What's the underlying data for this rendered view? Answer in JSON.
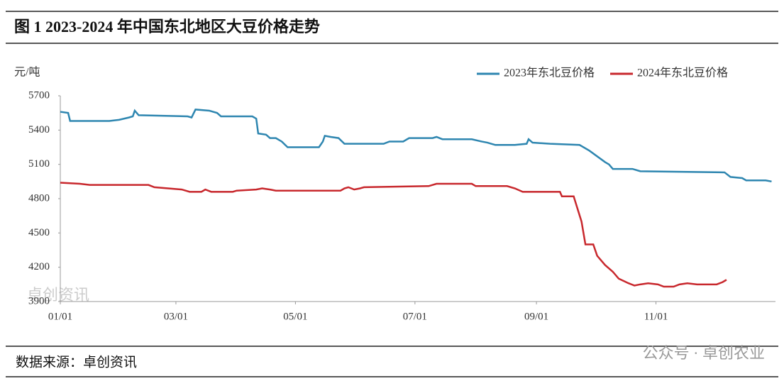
{
  "chart_data": {
    "type": "line",
    "title": "图 1 2023-2024 年中国东北地区大豆价格走势",
    "ylabel": "元/吨",
    "source": "数据来源：卓创资讯",
    "watermarks": [
      "卓创资讯",
      "公众号 · 卓创农业"
    ],
    "xlim": [
      0,
      365
    ],
    "xticks": [
      {
        "value": 0,
        "label": "01/01"
      },
      {
        "value": 59,
        "label": "03/01"
      },
      {
        "value": 120,
        "label": "05/01"
      },
      {
        "value": 181,
        "label": "07/01"
      },
      {
        "value": 243,
        "label": "09/01"
      },
      {
        "value": 304,
        "label": "11/01"
      }
    ],
    "ylim": [
      3900,
      5700
    ],
    "yticks": [
      3900,
      4200,
      4500,
      4800,
      5100,
      5400,
      5700
    ],
    "legend": "top-right",
    "series": [
      {
        "name": "2023年东北豆价格",
        "color": "#2e86b0",
        "x": [
          0,
          4,
          5,
          25,
          30,
          35,
          37,
          38,
          40,
          65,
          67,
          69,
          76,
          80,
          82,
          98,
          100,
          101,
          105,
          107,
          110,
          113,
          116,
          132,
          134,
          135,
          138,
          142,
          145,
          165,
          168,
          175,
          178,
          190,
          192,
          195,
          210,
          215,
          218,
          222,
          232,
          238,
          239,
          241,
          250,
          265,
          270,
          278,
          280,
          282,
          292,
          296,
          339,
          342,
          348,
          350,
          360,
          363
        ],
        "values": [
          5560,
          5550,
          5480,
          5480,
          5490,
          5510,
          5520,
          5570,
          5530,
          5520,
          5510,
          5580,
          5570,
          5550,
          5520,
          5520,
          5500,
          5370,
          5360,
          5330,
          5330,
          5300,
          5250,
          5250,
          5300,
          5350,
          5340,
          5330,
          5280,
          5280,
          5300,
          5300,
          5330,
          5330,
          5340,
          5320,
          5320,
          5300,
          5290,
          5270,
          5270,
          5280,
          5320,
          5290,
          5280,
          5270,
          5220,
          5120,
          5100,
          5060,
          5060,
          5040,
          5030,
          4990,
          4980,
          4960,
          4960,
          4950
        ]
      },
      {
        "name": "2024年东北豆价格",
        "color": "#c8282d",
        "x": [
          0,
          10,
          15,
          45,
          48,
          55,
          62,
          66,
          72,
          74,
          77,
          88,
          90,
          100,
          103,
          107,
          110,
          143,
          145,
          147,
          150,
          153,
          155,
          188,
          192,
          210,
          212,
          228,
          232,
          236,
          255,
          256,
          262,
          266,
          268,
          272,
          274,
          278,
          282,
          285,
          290,
          293,
          296,
          300,
          305,
          308,
          313,
          316,
          320,
          325,
          335,
          338,
          340
        ],
        "values": [
          4940,
          4930,
          4920,
          4920,
          4900,
          4890,
          4880,
          4860,
          4860,
          4880,
          4860,
          4860,
          4870,
          4880,
          4890,
          4880,
          4870,
          4870,
          4890,
          4900,
          4880,
          4890,
          4900,
          4910,
          4930,
          4930,
          4910,
          4910,
          4890,
          4860,
          4860,
          4820,
          4820,
          4600,
          4400,
          4400,
          4300,
          4220,
          4160,
          4100,
          4060,
          4040,
          4050,
          4060,
          4050,
          4030,
          4030,
          4050,
          4060,
          4050,
          4050,
          4070,
          4090
        ]
      }
    ]
  }
}
